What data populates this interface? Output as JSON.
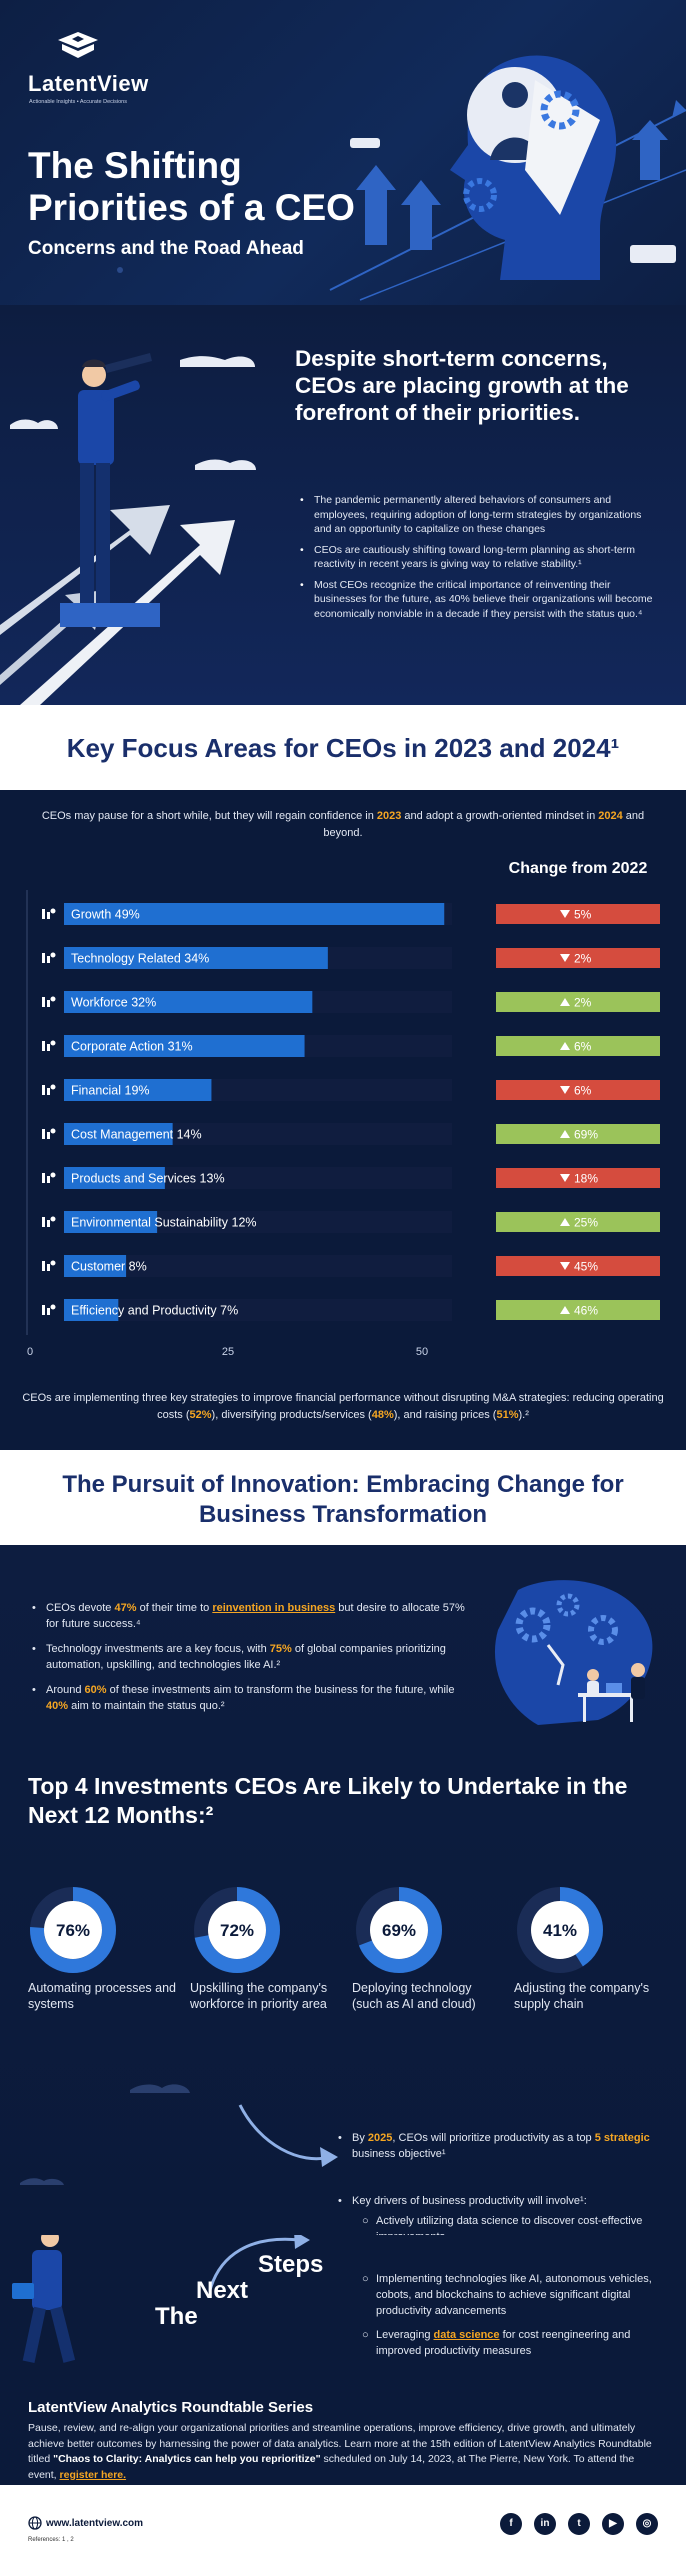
{
  "brand": {
    "name": "LatentView",
    "tagline": "Actionable Insights • Accurate Decisions"
  },
  "hero": {
    "title_line1": "The Shifting",
    "title_line2": "Priorities of a CEO",
    "subtitle": "Concerns and the Road Ahead"
  },
  "intro": {
    "heading": "Despite short-term concerns, CEOs are placing growth at the forefront of their priorities.",
    "bullets": [
      "The pandemic permanently altered behaviors of consumers and employees, requiring adoption of long-term strategies by organizations and an opportunity to capitalize on these changes",
      "CEOs are cautiously shifting toward long-term planning as short-term reactivity in recent years is giving way to relative stability.¹",
      "Most CEOs recognize the critical importance of reinventing their businesses for the future, as 40% believe their organizations will become economically nonviable in a decade if they persist with the status quo.⁴"
    ]
  },
  "key_focus": {
    "title": "Key Focus Areas for CEOs in 2023 and 2024¹",
    "intro_a": "CEOs may pause for a short while, but they will regain confidence in ",
    "intro_y1": "2023",
    "intro_b": " and adopt a growth-oriented mindset in ",
    "intro_y2": "2024",
    "intro_c": " and beyond.",
    "change_header": "Change from 2022",
    "bottom_a": "CEOs are implementing three key strategies to improve financial performance without disrupting M&A strategies: reducing operating costs (",
    "bottom_v1": "52%",
    "bottom_b": "), diversifying products/services (",
    "bottom_v2": "48%",
    "bottom_c": "), and raising prices (",
    "bottom_v3": "51%",
    "bottom_d": ").²"
  },
  "chart_data": {
    "type": "bar",
    "orientation": "horizontal",
    "categories": [
      "Growth",
      "Technology Related",
      "Workforce",
      "Corporate Action",
      "Financial",
      "Cost Management",
      "Products and Services",
      "Environmental Sustainability",
      "Customer",
      "Efficiency and Productivity"
    ],
    "labels": [
      "Growth 49%",
      "Technology Related 34%",
      "Workforce 32%",
      "Corporate Action 31%",
      "Financial 19%",
      "Cost Management 14%",
      "Products and Services 13%",
      "Environmental Sustainability 12%",
      "Customer 8%",
      "Efficiency and Productivity 7%"
    ],
    "values": [
      49,
      34,
      32,
      31,
      19,
      14,
      13,
      12,
      8,
      7
    ],
    "xlim": [
      0,
      50
    ],
    "xticks": [
      "0",
      "25",
      "50"
    ],
    "icons": [
      "growth-chart-icon",
      "globe-icon",
      "people-network-icon",
      "flag-icon",
      "target-icon",
      "cost-chart-icon",
      "boxes-icon",
      "leaf-hand-icon",
      "person-icon",
      "gauge-icon"
    ],
    "change": {
      "title": "Change from 2022",
      "direction": [
        "down",
        "down",
        "up",
        "up",
        "down",
        "up",
        "down",
        "up",
        "down",
        "up"
      ],
      "labels": [
        "5%",
        "2%",
        "2%",
        "6%",
        "6%",
        "69%",
        "18%",
        "25%",
        "45%",
        "46%"
      ]
    },
    "colors": {
      "bar": "#1f6fd1",
      "track": "#101d3f",
      "up": "#9bc35a",
      "down": "#d54c3e"
    }
  },
  "innovation": {
    "title": "The Pursuit of Innovation: Embracing Change for Business Transformation",
    "b1_a": "CEOs devote ",
    "b1_v": "47%",
    "b1_b": " of their time to ",
    "b1_link": "reinvention in business",
    "b1_c": " but desire to allocate 57% for future success.⁴",
    "b2_a": "Technology investments are a key focus, with ",
    "b2_v": "75%",
    "b2_b": " of global companies prioritizing automation, upskilling, and technologies like AI.²",
    "b3_a": "Around ",
    "b3_v": "60%",
    "b3_b": " of these investments aim to transform the business for the future, while ",
    "b3_v2": "40%",
    "b3_c": " aim to maintain the status quo.²"
  },
  "top4": {
    "title": "Top 4 Investments CEOs Are Likely to Undertake in the Next 12 Months:²",
    "items": [
      {
        "pct": "76%",
        "value": 76,
        "label": "Automating processes and systems"
      },
      {
        "pct": "72%",
        "value": 72,
        "label": "Upskilling the company's workforce in priority area"
      },
      {
        "pct": "69%",
        "value": 69,
        "label": "Deploying technology (such as AI and cloud)"
      },
      {
        "pct": "41%",
        "value": 41,
        "label": "Adjusting the company's supply chain"
      }
    ]
  },
  "next_steps": {
    "w1": "The",
    "w2": "Next",
    "w3": "Steps",
    "p1_a": "By ",
    "p1_year": "2025",
    "p1_b": ", CEOs will prioritize productivity as a top ",
    "p1_hl": "5 strategic",
    "p1_c": " business objective¹",
    "p2": "Key drivers of business productivity will involve¹:",
    "sub1": "Actively utilizing data science to discover cost-effective improvements",
    "sub2": "Implementing technologies like AI, autonomous vehicles, cobots, and blockchains to achieve significant digital productivity advancements",
    "sub3_a": "Leveraging ",
    "sub3_link": "data science",
    "sub3_b": " for cost reengineering and improved productivity measures"
  },
  "roundtable": {
    "title": "LatentView Analytics Roundtable Series",
    "text_a": "Pause, review, and re-align your organizational priorities and streamline operations, improve efficiency, drive growth, and ultimately achieve better outcomes by harnessing the power of data analytics. Learn more at the 15th edition of LatentView Analytics Roundtable titled ",
    "text_bold": "\"Chaos to Clarity: Analytics can help you reprioritize\"",
    "text_b": " scheduled on July 14, 2023, at The Pierre, New York. To attend the event, ",
    "link": "register here."
  },
  "footer": {
    "url": "www.latentview.com",
    "refs": "References: 1 , 2",
    "social": [
      "facebook-icon",
      "linkedin-icon",
      "twitter-icon",
      "youtube-icon",
      "instagram-icon"
    ],
    "social_glyphs": [
      "f",
      "in",
      "t",
      "▶",
      "◎"
    ]
  },
  "colors": {
    "navy": "#0b1a3a",
    "accent": "#f5a623",
    "blue": "#1f6fd1",
    "heading_blue": "#1a2f6b"
  }
}
